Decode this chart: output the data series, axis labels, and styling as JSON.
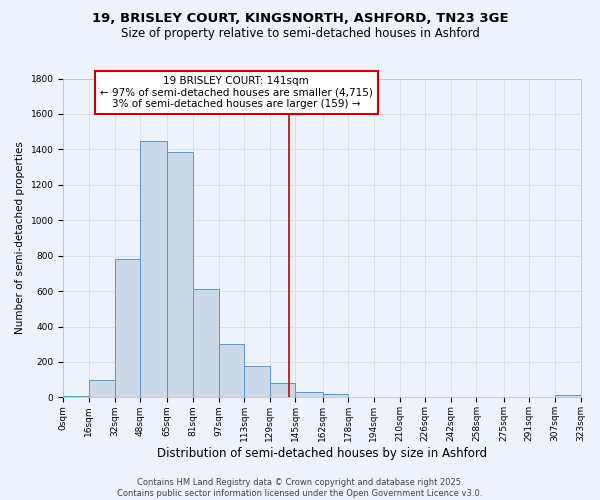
{
  "title_line1": "19, BRISLEY COURT, KINGSNORTH, ASHFORD, TN23 3GE",
  "title_line2": "Size of property relative to semi-detached houses in Ashford",
  "xlabel": "Distribution of semi-detached houses by size in Ashford",
  "ylabel": "Number of semi-detached properties",
  "bin_edges": [
    0,
    16,
    32,
    48,
    65,
    81,
    97,
    113,
    129,
    145,
    162,
    178,
    194,
    210,
    226,
    242,
    258,
    275,
    291,
    307,
    323
  ],
  "bin_labels": [
    "0sqm",
    "16sqm",
    "32sqm",
    "48sqm",
    "65sqm",
    "81sqm",
    "97sqm",
    "113sqm",
    "129sqm",
    "145sqm",
    "162sqm",
    "178sqm",
    "194sqm",
    "210sqm",
    "226sqm",
    "242sqm",
    "258sqm",
    "275sqm",
    "291sqm",
    "307sqm",
    "323sqm"
  ],
  "bar_heights": [
    10,
    100,
    780,
    1450,
    1385,
    610,
    300,
    175,
    80,
    30,
    20,
    0,
    0,
    0,
    0,
    0,
    0,
    0,
    0,
    15
  ],
  "bar_color": "#ccd9e8",
  "bar_edgecolor": "#5599cc",
  "grid_color": "#d8e0ee",
  "bg_color": "#eef2fa",
  "vline_x": 141,
  "vline_color": "#cc0000",
  "annotation_text": "19 BRISLEY COURT: 141sqm\n← 97% of semi-detached houses are smaller (4,715)\n3% of semi-detached houses are larger (159) →",
  "ylim": [
    0,
    1800
  ],
  "yticks": [
    0,
    200,
    400,
    600,
    800,
    1000,
    1200,
    1400,
    1600,
    1800
  ],
  "footer_line1": "Contains HM Land Registry data © Crown copyright and database right 2025.",
  "footer_line2": "Contains public sector information licensed under the Open Government Licence v3.0.",
  "title_fontsize": 9.5,
  "subtitle_fontsize": 8.5,
  "xlabel_fontsize": 8.5,
  "ylabel_fontsize": 7.5,
  "tick_fontsize": 6.5,
  "annot_fontsize": 7.5,
  "footer_fontsize": 6.0
}
